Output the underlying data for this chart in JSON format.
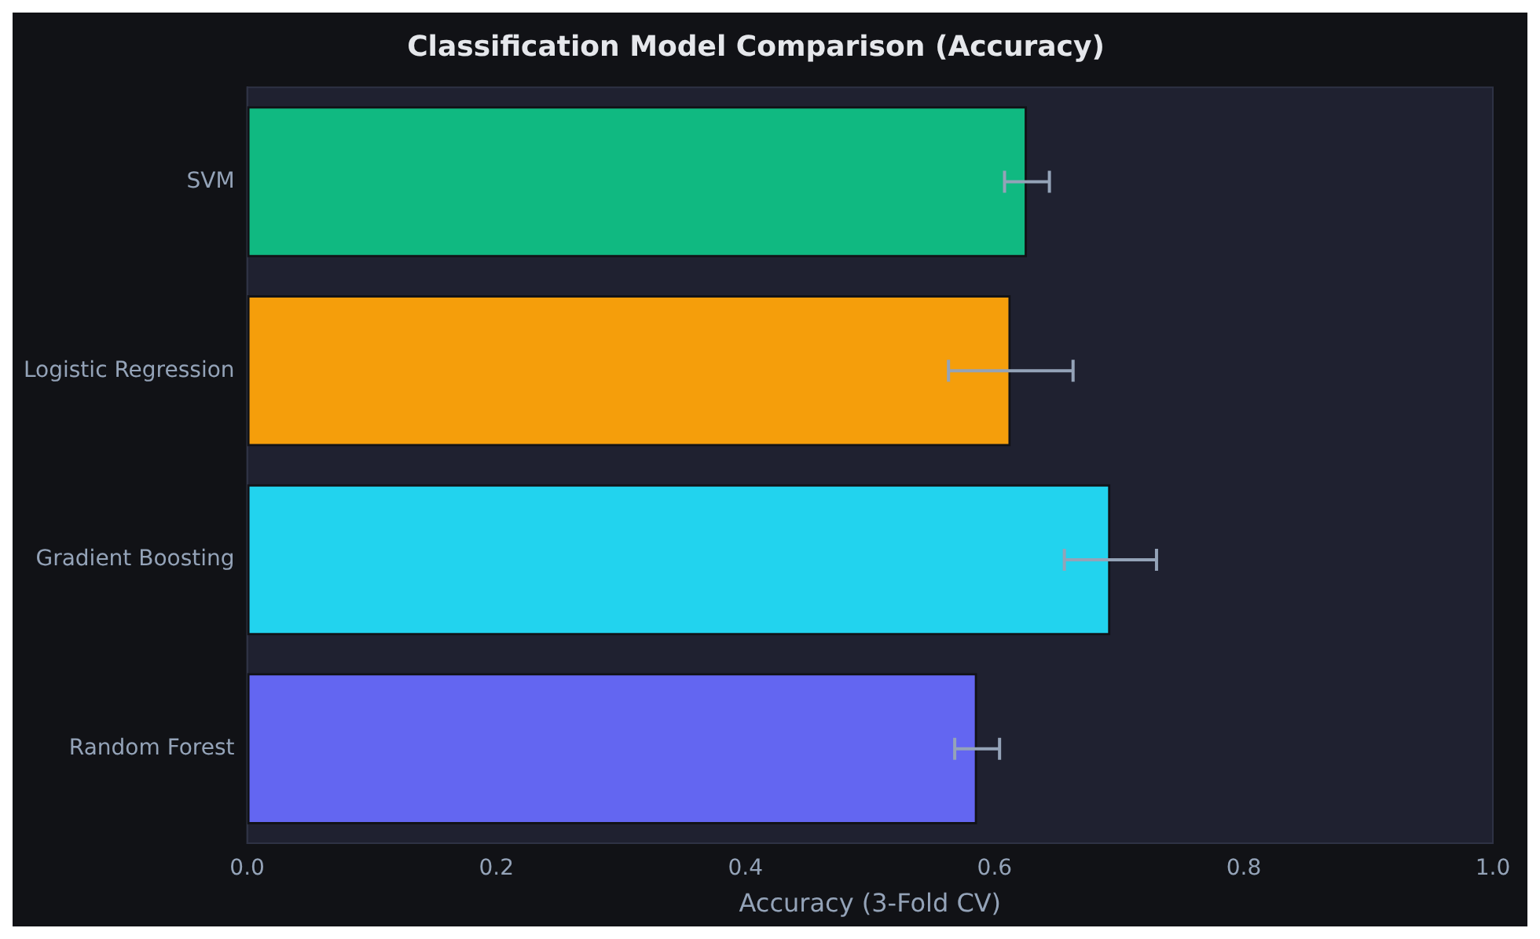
{
  "chart_data": {
    "type": "bar",
    "orientation": "horizontal",
    "title": "Classification Model Comparison (Accuracy)",
    "xlabel": "Accuracy (3-Fold CV)",
    "categories": [
      "SVM",
      "Logistic Regression",
      "Gradient Boosting",
      "Random Forest"
    ],
    "values": [
      0.626,
      0.613,
      0.693,
      0.586
    ],
    "colors": [
      "#10b981",
      "#f59e0b",
      "#22d3ee",
      "#6366f1"
    ],
    "errors": [
      0.018,
      0.05,
      0.037,
      0.018
    ],
    "xlim": [
      0,
      1
    ],
    "xticks": [
      {
        "value": 0,
        "label": "0.0"
      },
      {
        "value": 0.2,
        "label": "0.2"
      },
      {
        "value": 0.4,
        "label": "0.4"
      },
      {
        "value": 0.6,
        "label": "0.6"
      },
      {
        "value": 0.8,
        "label": "0.8"
      },
      {
        "value": 1,
        "label": "1.0"
      }
    ],
    "grid": false,
    "legend": false
  }
}
